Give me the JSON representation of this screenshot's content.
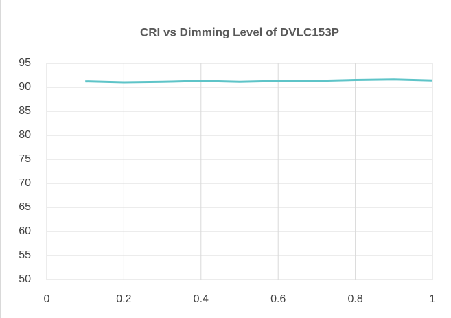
{
  "chart_data": {
    "type": "line",
    "title": "CRI vs Dimming Level of DVLC153P",
    "x": [
      0.1,
      0.2,
      0.3,
      0.4,
      0.5,
      0.6,
      0.7,
      0.8,
      0.9,
      1
    ],
    "series": [
      {
        "name": "CRI",
        "color": "#5ec4c8",
        "values": [
          91.2,
          91.0,
          91.1,
          91.3,
          91.1,
          91.3,
          91.3,
          91.5,
          91.6,
          91.4
        ]
      }
    ],
    "xlim": [
      0,
      1
    ],
    "xticks": [
      0,
      0.2,
      0.4,
      0.6,
      0.8,
      1
    ],
    "ylim": [
      50,
      95
    ],
    "yticks": [
      50,
      55,
      60,
      65,
      70,
      75,
      80,
      85,
      90,
      95
    ],
    "grid": true,
    "legend": false
  }
}
